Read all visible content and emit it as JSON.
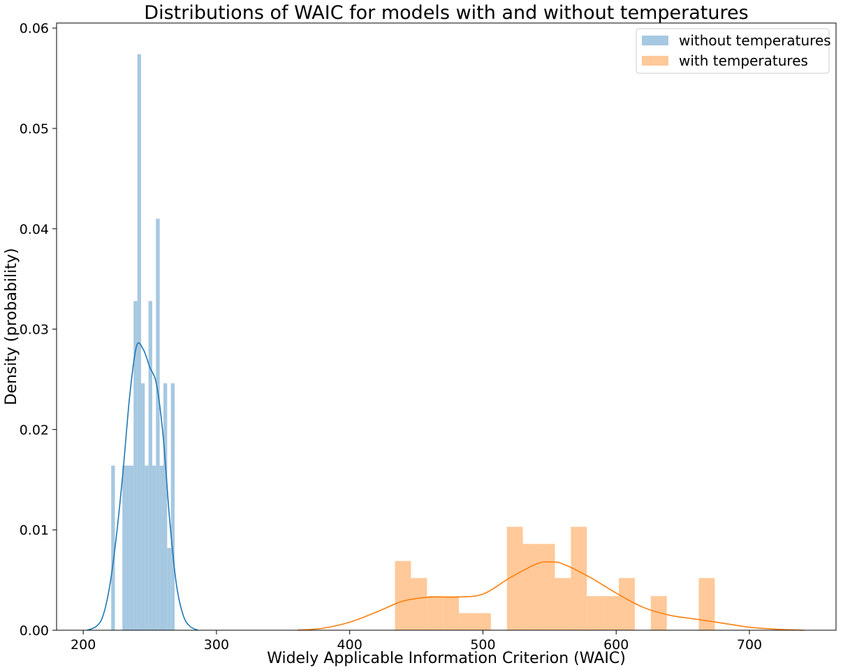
{
  "chart_data": {
    "type": "histogram-kde",
    "title": "Distributions of WAIC for models with and without temperatures",
    "xlabel": "Widely Applicable Information Criterion  (WAIC)",
    "ylabel": "Density (probability)",
    "xlim": [
      180,
      765
    ],
    "ylim": [
      0,
      0.0605
    ],
    "xticks": [
      200,
      300,
      400,
      500,
      600,
      700
    ],
    "yticks": [
      0.0,
      0.01,
      0.02,
      0.03,
      0.04,
      0.05,
      0.06
    ],
    "ytick_labels": [
      "0.00",
      "0.01",
      "0.02",
      "0.03",
      "0.04",
      "0.05",
      "0.06"
    ],
    "legend_position": "top-right",
    "series": [
      {
        "name": "without temperatures",
        "hist_color": "#a6c8e1",
        "line_color": "#1f77b4",
        "bars": [
          {
            "x0": 221.0,
            "x1": 223.8,
            "h": 0.0164
          },
          {
            "x0": 223.8,
            "x1": 226.6,
            "h": 0.0
          },
          {
            "x0": 226.6,
            "x1": 229.4,
            "h": 0.0
          },
          {
            "x0": 229.4,
            "x1": 232.2,
            "h": 0.0164
          },
          {
            "x0": 232.2,
            "x1": 235.0,
            "h": 0.0164
          },
          {
            "x0": 235.0,
            "x1": 237.8,
            "h": 0.0164
          },
          {
            "x0": 237.8,
            "x1": 240.6,
            "h": 0.0328
          },
          {
            "x0": 240.6,
            "x1": 243.4,
            "h": 0.0574
          },
          {
            "x0": 243.4,
            "x1": 246.2,
            "h": 0.0246
          },
          {
            "x0": 246.2,
            "x1": 249.0,
            "h": 0.0164
          },
          {
            "x0": 249.0,
            "x1": 251.8,
            "h": 0.0328
          },
          {
            "x0": 251.8,
            "x1": 254.6,
            "h": 0.0164
          },
          {
            "x0": 254.6,
            "x1": 257.4,
            "h": 0.041
          },
          {
            "x0": 257.4,
            "x1": 260.2,
            "h": 0.0164
          },
          {
            "x0": 260.2,
            "x1": 263.0,
            "h": 0.0246
          },
          {
            "x0": 263.0,
            "x1": 265.8,
            "h": 0.0082
          },
          {
            "x0": 265.8,
            "x1": 268.6,
            "h": 0.0246
          }
        ],
        "kde": {
          "x": [
            203,
            210,
            215,
            220,
            225,
            230,
            235,
            240,
            245,
            250,
            255,
            260,
            265,
            270,
            275,
            280,
            286
          ],
          "y": [
            0.0,
            0.0004,
            0.0015,
            0.0045,
            0.0095,
            0.016,
            0.0235,
            0.0283,
            0.028,
            0.0262,
            0.0245,
            0.0193,
            0.0108,
            0.0045,
            0.0015,
            0.0004,
            0.0
          ]
        }
      },
      {
        "name": "with temperatures",
        "hist_color": "#ffc999",
        "line_color": "#ff7f0e",
        "bars": [
          {
            "x0": 434,
            "x1": 446,
            "h": 0.0069
          },
          {
            "x0": 446,
            "x1": 458,
            "h": 0.0052
          },
          {
            "x0": 458,
            "x1": 470,
            "h": 0.0034
          },
          {
            "x0": 470,
            "x1": 482,
            "h": 0.0034
          },
          {
            "x0": 482,
            "x1": 494,
            "h": 0.0017
          },
          {
            "x0": 494,
            "x1": 506,
            "h": 0.0017
          },
          {
            "x0": 506,
            "x1": 518,
            "h": 0.0
          },
          {
            "x0": 518,
            "x1": 530,
            "h": 0.0103
          },
          {
            "x0": 530,
            "x1": 542,
            "h": 0.0086
          },
          {
            "x0": 542,
            "x1": 554,
            "h": 0.0086
          },
          {
            "x0": 554,
            "x1": 566,
            "h": 0.0052
          },
          {
            "x0": 566,
            "x1": 578,
            "h": 0.0103
          },
          {
            "x0": 578,
            "x1": 590,
            "h": 0.0034
          },
          {
            "x0": 590,
            "x1": 602,
            "h": 0.0034
          },
          {
            "x0": 602,
            "x1": 614,
            "h": 0.0052
          },
          {
            "x0": 614,
            "x1": 626,
            "h": 0.0
          },
          {
            "x0": 626,
            "x1": 638,
            "h": 0.0034
          },
          {
            "x0": 638,
            "x1": 650,
            "h": 0.0
          },
          {
            "x0": 650,
            "x1": 662,
            "h": 0.0
          },
          {
            "x0": 662,
            "x1": 674,
            "h": 0.0052
          }
        ],
        "kde": {
          "x": [
            361,
            380,
            400,
            420,
            440,
            460,
            480,
            500,
            520,
            540,
            550,
            560,
            580,
            600,
            620,
            640,
            660,
            680,
            700,
            720,
            741
          ],
          "y": [
            0.0,
            0.0002,
            0.0008,
            0.0018,
            0.0029,
            0.0033,
            0.0033,
            0.0036,
            0.0052,
            0.0066,
            0.0068,
            0.0066,
            0.0053,
            0.0037,
            0.0023,
            0.0015,
            0.0011,
            0.0007,
            0.0003,
            0.0001,
            0.0
          ]
        }
      }
    ]
  }
}
